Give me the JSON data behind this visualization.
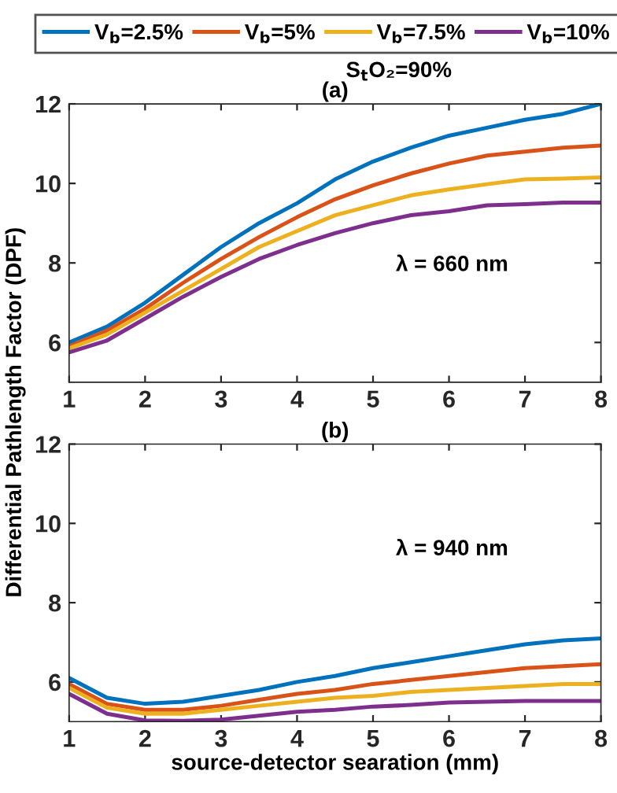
{
  "chart_data": [
    {
      "type": "line",
      "title": "(a)",
      "ylabel": "Differential Pathlength Factor (DPF)",
      "legend": "top",
      "grid": false,
      "x": [
        1,
        1.5,
        2,
        2.5,
        3,
        3.5,
        4,
        4.5,
        5,
        5.5,
        6,
        6.5,
        7,
        7.5,
        8
      ],
      "xlim": [
        1,
        8
      ],
      "xticks": [
        1,
        2,
        3,
        4,
        5,
        6,
        7,
        8
      ],
      "ylim": [
        5,
        12
      ],
      "yticks": [
        6,
        8,
        10,
        12
      ],
      "annotations": [
        "S$_{t}$O₂=90%",
        "λ = 660 nm"
      ],
      "series": [
        {
          "name": "V$_{b}$=2.5%",
          "color": "#0072bd",
          "values": [
            6.0,
            6.4,
            7.0,
            7.7,
            8.4,
            9.0,
            9.5,
            10.1,
            10.55,
            10.9,
            11.2,
            11.4,
            11.6,
            11.75,
            12.0
          ]
        },
        {
          "name": "V$_{b}$=5%",
          "color": "#d95319",
          "values": [
            5.9,
            6.3,
            6.85,
            7.5,
            8.1,
            8.65,
            9.15,
            9.6,
            9.95,
            10.25,
            10.5,
            10.7,
            10.8,
            10.9,
            10.95
          ]
        },
        {
          "name": "V$_{b}$=7.5%",
          "color": "#edb120",
          "values": [
            5.85,
            6.2,
            6.75,
            7.3,
            7.85,
            8.4,
            8.8,
            9.2,
            9.45,
            9.7,
            9.85,
            9.98,
            10.1,
            10.12,
            10.15
          ]
        },
        {
          "name": "V$_{b}$=10%",
          "color": "#7e2f8e",
          "values": [
            5.75,
            6.05,
            6.6,
            7.15,
            7.65,
            8.1,
            8.45,
            8.75,
            9.0,
            9.2,
            9.3,
            9.45,
            9.48,
            9.52,
            9.52
          ]
        }
      ]
    },
    {
      "type": "line",
      "title": "(b)",
      "xlabel": "source-detector searation (mm)",
      "grid": false,
      "x": [
        1,
        1.5,
        2,
        2.5,
        3,
        3.5,
        4,
        4.5,
        5,
        5.5,
        6,
        6.5,
        7,
        7.5,
        8
      ],
      "xlim": [
        1,
        8
      ],
      "xticks": [
        1,
        2,
        3,
        4,
        5,
        6,
        7,
        8
      ],
      "ylim": [
        5,
        12
      ],
      "yticks": [
        6,
        8,
        10,
        12
      ],
      "annotations": [
        "λ = 940 nm"
      ],
      "series": [
        {
          "color": "#0072bd",
          "values": [
            6.1,
            5.6,
            5.45,
            5.5,
            5.65,
            5.8,
            6.0,
            6.15,
            6.35,
            6.5,
            6.65,
            6.8,
            6.95,
            7.05,
            7.1
          ]
        },
        {
          "color": "#d95319",
          "values": [
            5.95,
            5.45,
            5.3,
            5.3,
            5.4,
            5.55,
            5.7,
            5.8,
            5.95,
            6.05,
            6.15,
            6.25,
            6.35,
            6.4,
            6.45
          ]
        },
        {
          "color": "#edb120",
          "values": [
            5.85,
            5.35,
            5.2,
            5.2,
            5.3,
            5.4,
            5.5,
            5.6,
            5.65,
            5.75,
            5.8,
            5.85,
            5.9,
            5.95,
            5.95
          ]
        },
        {
          "color": "#7e2f8e",
          "values": [
            5.7,
            5.2,
            5.03,
            5.02,
            5.05,
            5.15,
            5.25,
            5.3,
            5.38,
            5.42,
            5.48,
            5.5,
            5.52,
            5.52,
            5.52
          ]
        }
      ]
    }
  ]
}
